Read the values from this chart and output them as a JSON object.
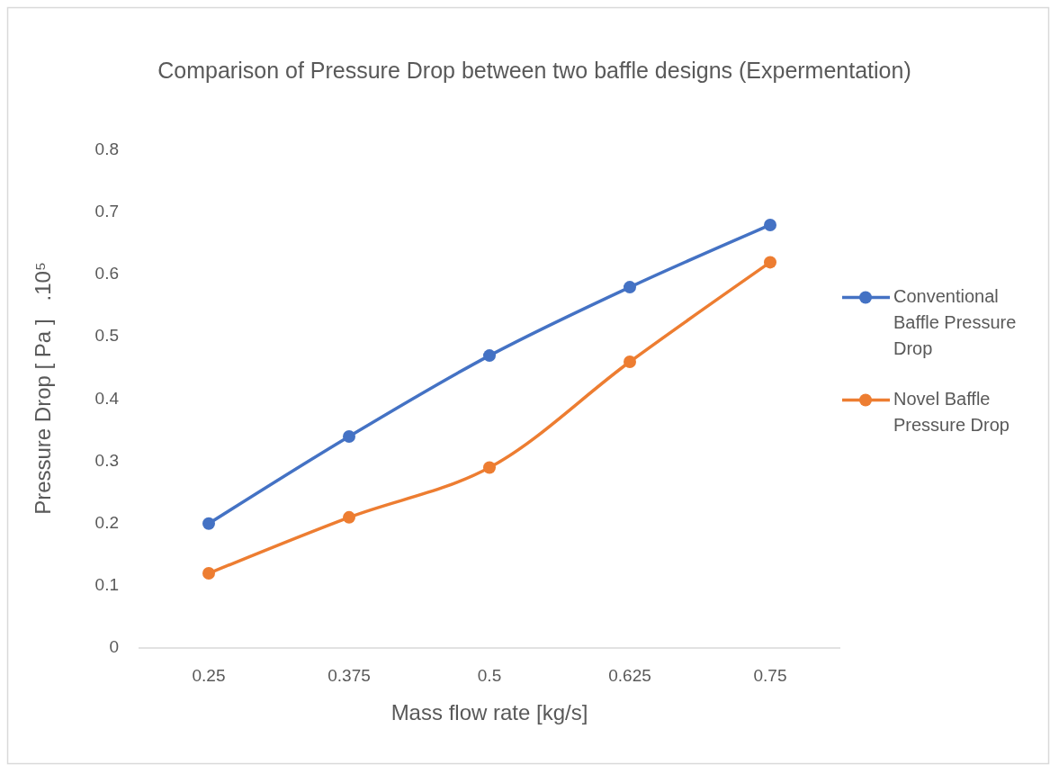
{
  "chart_data": {
    "type": "line",
    "title": "Comparison of Pressure Drop between two baffle designs (Expermentation)",
    "xlabel": "Mass flow rate [kg/s]",
    "ylabel": "Pressure Drop [ Pa ]   .10⁵",
    "categories": [
      "0.25",
      "0.375",
      "0.5",
      "0.625",
      "0.75"
    ],
    "series": [
      {
        "name": "Conventional Baffle Pressure Drop",
        "color": "#4472c4",
        "values": [
          0.2,
          0.34,
          0.47,
          0.58,
          0.68
        ]
      },
      {
        "name": "Novel Baffle Pressure Drop",
        "color": "#ed7d31",
        "values": [
          0.12,
          0.21,
          0.29,
          0.46,
          0.62
        ]
      }
    ],
    "ylim": [
      0,
      0.8
    ],
    "yticks": [
      0,
      0.1,
      0.2,
      0.3,
      0.4,
      0.5,
      0.6,
      0.7,
      0.8
    ],
    "legend": "right",
    "marker": "circle",
    "line_style": "solid"
  }
}
